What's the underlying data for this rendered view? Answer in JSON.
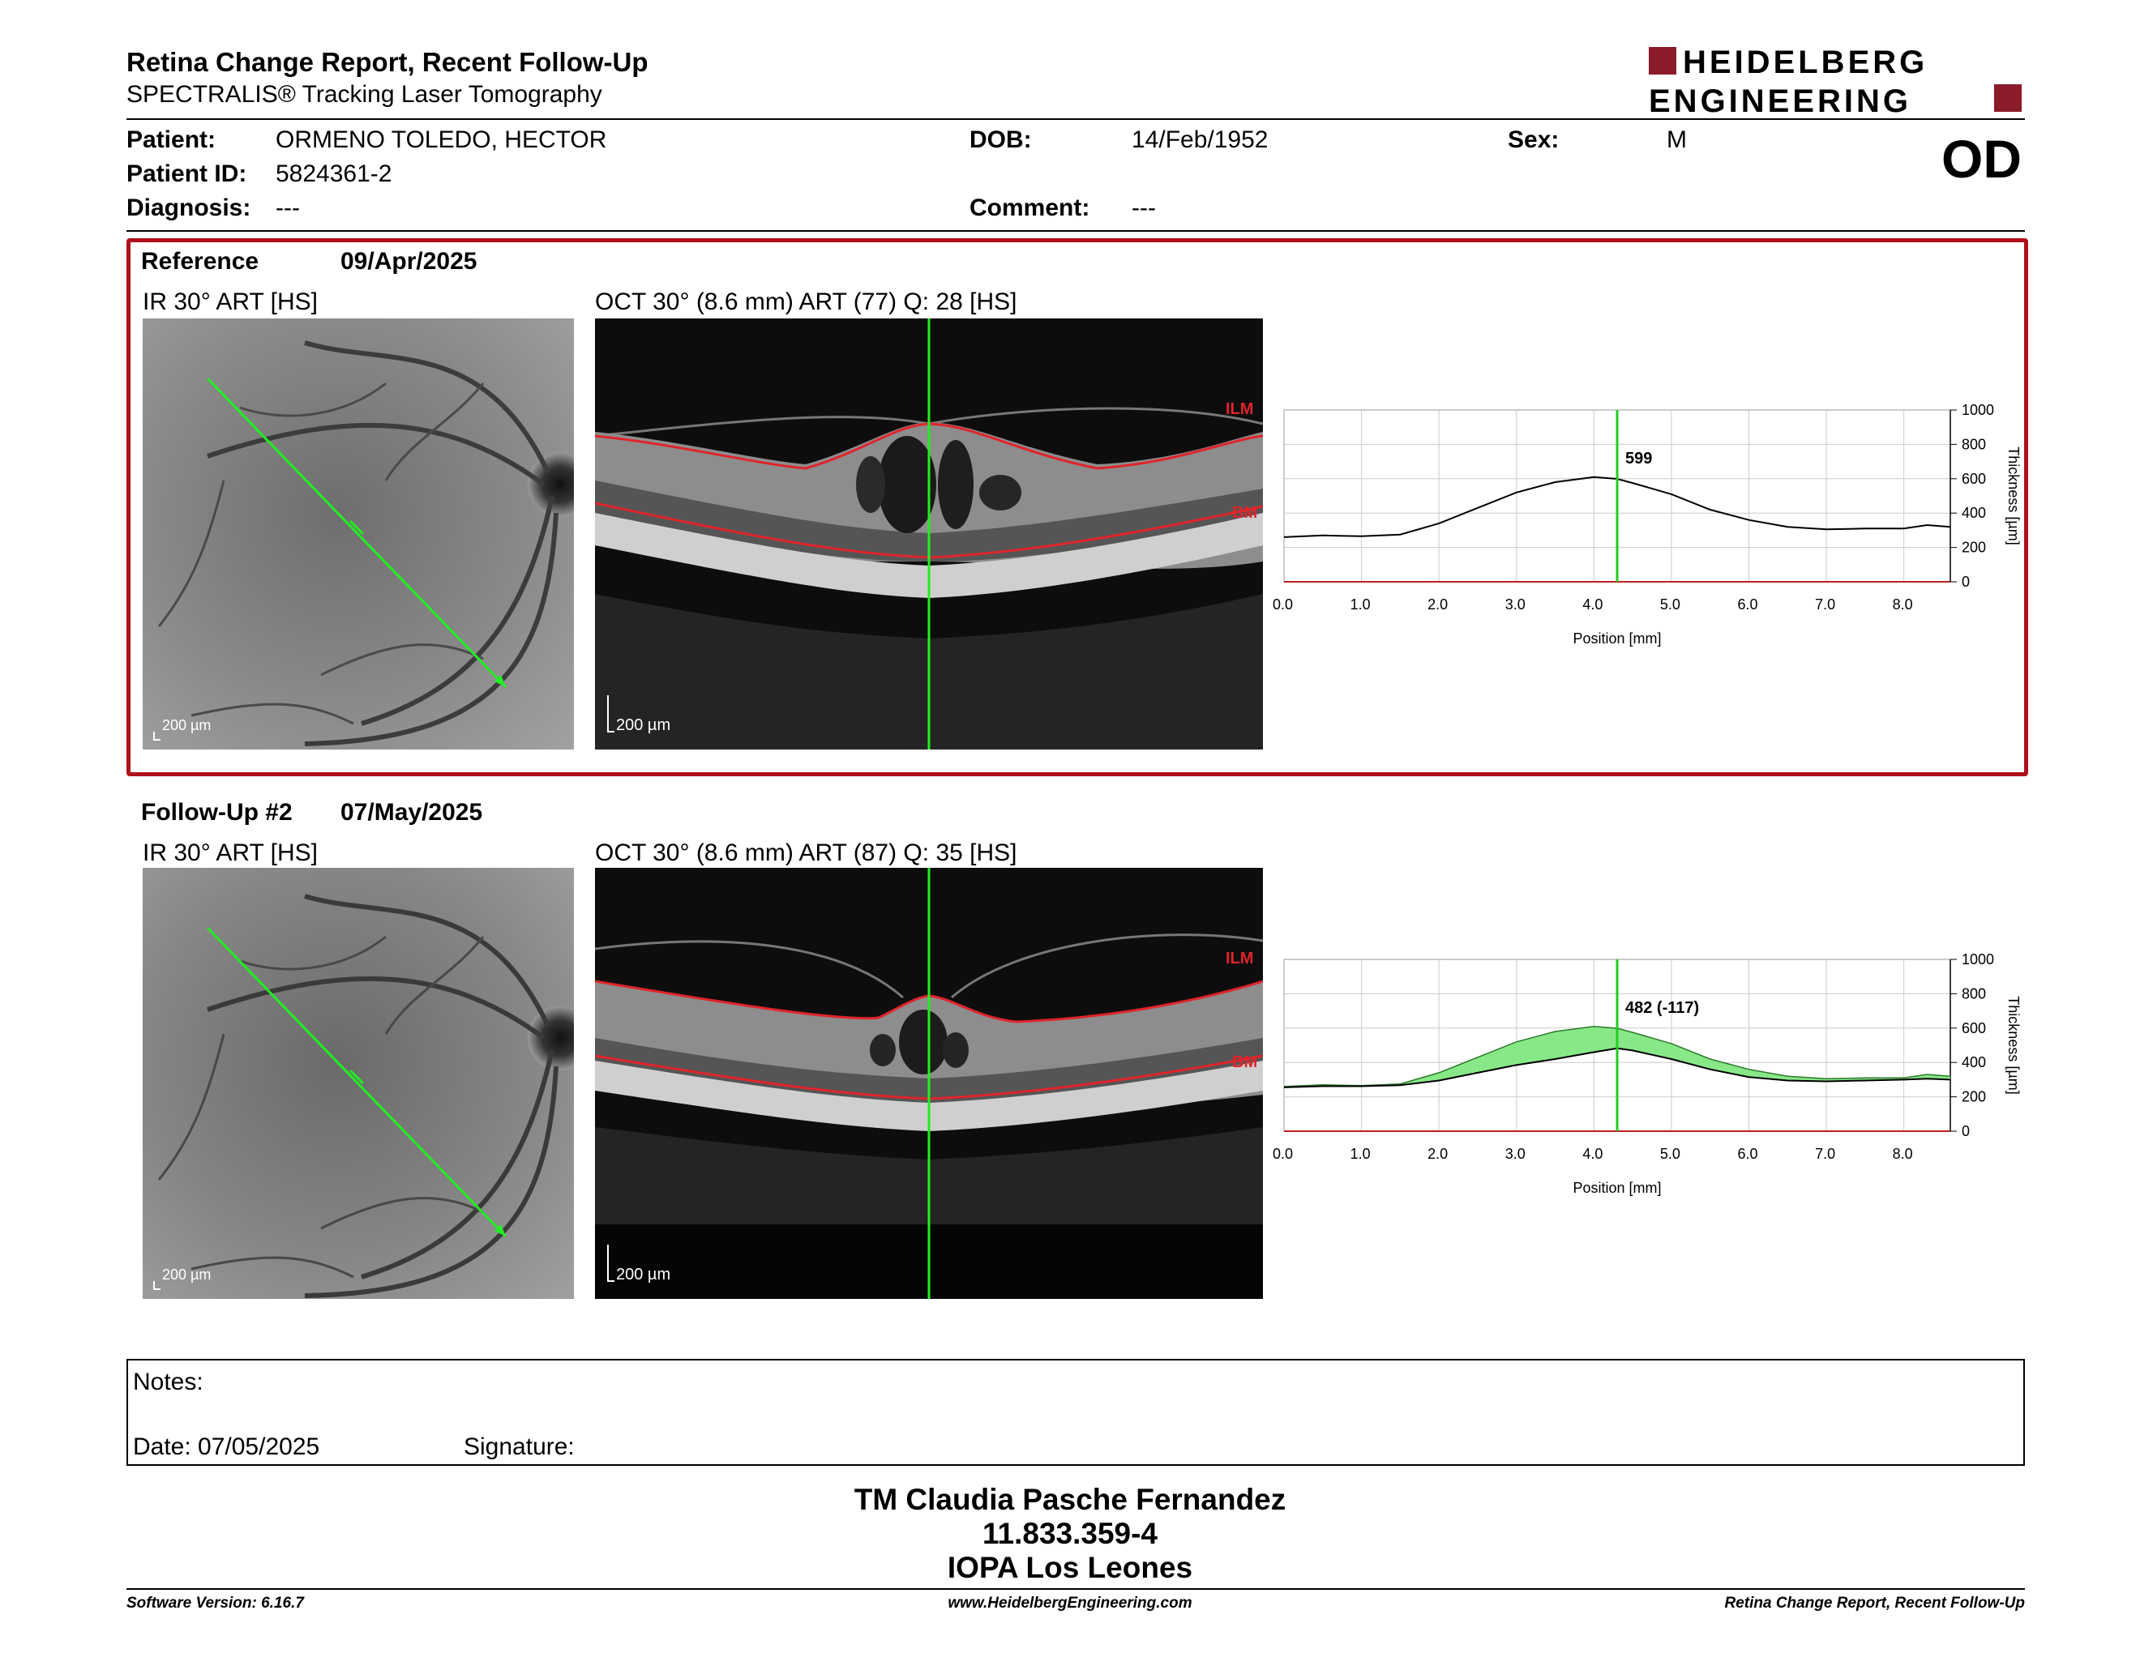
{
  "header": {
    "title": "Retina Change Report, Recent Follow-Up",
    "subtitle": "SPECTRALIS® Tracking Laser Tomography",
    "logo_line1": "HEIDELBERG",
    "logo_line2": "ENGINEERING"
  },
  "patient": {
    "name_label": "Patient:",
    "name": "ORMENO TOLEDO, HECTOR",
    "id_label": "Patient ID:",
    "id": "5824361-2",
    "diagnosis_label": "Diagnosis:",
    "diagnosis": "---",
    "dob_label": "DOB:",
    "dob": "14/Feb/1952",
    "comment_label": "Comment:",
    "comment": "---",
    "sex_label": "Sex:",
    "sex": "M",
    "eye": "OD"
  },
  "reference": {
    "label": "Reference",
    "date": "09/Apr/2025",
    "ir_caption": "IR 30° ART [HS]",
    "oct_caption": "OCT 30° (8.6 mm) ART (77) Q: 28 [HS]",
    "ir_scale": "200 µm",
    "oct_scale": "200 µm",
    "ilm_label": "ILM",
    "bm_label": "BM"
  },
  "followup": {
    "label": "Follow-Up #2",
    "date": "07/May/2025",
    "ir_caption": "IR 30° ART [HS]",
    "oct_caption": "OCT 30° (8.6 mm) ART (87) Q: 35 [HS]",
    "ir_scale": "200 µm",
    "oct_scale": "200 µm",
    "ilm_label": "ILM",
    "bm_label": "BM"
  },
  "chart_data": [
    {
      "type": "line",
      "xlabel": "Position [mm]",
      "ylabel": "Thickness [µm]",
      "xlim": [
        0,
        8.6
      ],
      "ylim": [
        0,
        1000
      ],
      "xticks": [
        "0.0",
        "1.0",
        "2.0",
        "3.0",
        "4.0",
        "5.0",
        "6.0",
        "7.0",
        "8.0"
      ],
      "yticks": [
        "0",
        "200",
        "400",
        "600",
        "800",
        "1000"
      ],
      "cursor_x": 4.3,
      "cursor_label": "599",
      "grid": true,
      "series": [
        {
          "x": [
            0,
            0.5,
            1.0,
            1.5,
            2.0,
            2.5,
            3.0,
            3.5,
            4.0,
            4.3,
            4.5,
            5.0,
            5.5,
            6.0,
            6.5,
            7.0,
            7.5,
            8.0,
            8.3,
            8.6
          ],
          "values": [
            260,
            270,
            265,
            275,
            340,
            430,
            520,
            580,
            610,
            599,
            575,
            510,
            420,
            360,
            320,
            305,
            310,
            310,
            330,
            320
          ]
        }
      ]
    },
    {
      "type": "area",
      "xlabel": "Position [mm]",
      "ylabel": "Thickness [µm]",
      "xlim": [
        0,
        8.6
      ],
      "ylim": [
        0,
        1000
      ],
      "xticks": [
        "0.0",
        "1.0",
        "2.0",
        "3.0",
        "4.0",
        "5.0",
        "6.0",
        "7.0",
        "8.0"
      ],
      "yticks": [
        "0",
        "200",
        "400",
        "600",
        "800",
        "1000"
      ],
      "cursor_x": 4.3,
      "cursor_label": "482 (-117)",
      "grid": true,
      "series": [
        {
          "x": [
            0,
            0.5,
            1.0,
            1.5,
            2.0,
            2.5,
            3.0,
            3.5,
            4.0,
            4.3,
            4.5,
            5.0,
            5.5,
            6.0,
            6.5,
            7.0,
            7.5,
            8.0,
            8.3,
            8.6
          ],
          "values": [
            260,
            270,
            265,
            275,
            340,
            430,
            520,
            580,
            610,
            599,
            575,
            510,
            420,
            360,
            320,
            305,
            310,
            310,
            330,
            320
          ]
        },
        {
          "x": [
            0,
            0.5,
            1.0,
            1.5,
            2.0,
            2.5,
            3.0,
            3.5,
            4.0,
            4.3,
            4.5,
            5.0,
            5.5,
            6.0,
            6.5,
            7.0,
            7.5,
            8.0,
            8.3,
            8.6
          ],
          "values": [
            255,
            262,
            262,
            268,
            295,
            340,
            385,
            420,
            460,
            482,
            470,
            420,
            360,
            315,
            295,
            290,
            295,
            300,
            305,
            300
          ]
        }
      ]
    }
  ],
  "notes": {
    "label": "Notes:",
    "date_label": "Date: 07/05/2025",
    "signature_label": "Signature:"
  },
  "signatory": {
    "name": "TM Claudia Pasche Fernandez",
    "rut": "11.833.359-4",
    "institution": "IOPA Los Leones"
  },
  "footer": {
    "software": "Software Version: 6.16.7",
    "website": "www.HeidelbergEngineering.com",
    "report_name": "Retina Change Report, Recent Follow-Up"
  },
  "colors": {
    "brand_red": "#8b1a2b",
    "frame_red": "#b0101a",
    "cursor_green": "#22cc22",
    "segmentation_red": "#e0242b",
    "diff_fill": "#88e888"
  }
}
